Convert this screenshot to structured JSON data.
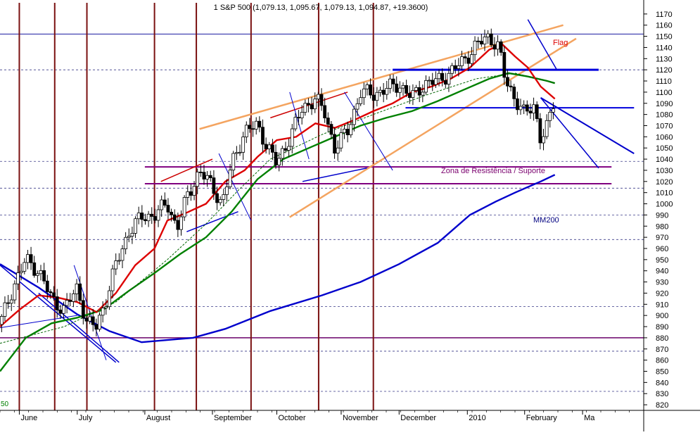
{
  "chart_data": {
    "type": "candlestick",
    "title": "1 S&P 500 (1,079.13, 1,095.67, 1,079.13, 1,094.87, +19.3600)",
    "y_axis": {
      "position": "right",
      "range": [
        815,
        1180
      ],
      "ticks": [
        820,
        830,
        840,
        850,
        860,
        870,
        880,
        890,
        900,
        910,
        920,
        930,
        940,
        950,
        960,
        970,
        980,
        990,
        1000,
        1010,
        1020,
        1030,
        1040,
        1050,
        1060,
        1070,
        1080,
        1090,
        1100,
        1110,
        1120,
        1130,
        1140,
        1150,
        1160,
        1170
      ]
    },
    "x_axis": {
      "months": [
        {
          "label": "June",
          "t": 0.03
        },
        {
          "label": "July",
          "t": 0.12
        },
        {
          "label": "August",
          "t": 0.225
        },
        {
          "label": "September",
          "t": 0.33
        },
        {
          "label": "October",
          "t": 0.43
        },
        {
          "label": "November",
          "t": 0.53
        },
        {
          "label": "December",
          "t": 0.62
        },
        {
          "label": "2010",
          "t": 0.726
        },
        {
          "label": "February",
          "t": 0.815
        },
        {
          "label": "Ma",
          "t": 0.905
        }
      ]
    },
    "grid": {
      "vertical_lines_t": [
        0.03,
        0.085,
        0.135,
        0.24,
        0.305,
        0.39,
        0.495,
        0.58
      ],
      "horizontal_dashed_levels": [
        832,
        868,
        908,
        968,
        990,
        1014,
        1038,
        1120
      ]
    },
    "series": [
      {
        "name": "MM200",
        "color": "#0000cc",
        "kind": "moving-average",
        "points": [
          [
            0.0,
            946
          ],
          [
            0.06,
            925
          ],
          [
            0.12,
            901
          ],
          [
            0.17,
            886
          ],
          [
            0.22,
            876
          ],
          [
            0.3,
            880
          ],
          [
            0.35,
            888
          ],
          [
            0.42,
            904
          ],
          [
            0.5,
            918
          ],
          [
            0.56,
            930
          ],
          [
            0.62,
            946
          ],
          [
            0.68,
            965
          ],
          [
            0.73,
            990
          ],
          [
            0.77,
            1002
          ],
          [
            0.8,
            1010
          ],
          [
            0.84,
            1020
          ],
          [
            0.862,
            1026
          ]
        ]
      },
      {
        "color": "#008000",
        "kind": "moving-average",
        "points": [
          [
            0.0,
            850
          ],
          [
            0.04,
            880
          ],
          [
            0.08,
            893
          ],
          [
            0.12,
            898
          ],
          [
            0.16,
            905
          ],
          [
            0.2,
            922
          ],
          [
            0.24,
            938
          ],
          [
            0.28,
            955
          ],
          [
            0.32,
            970
          ],
          [
            0.36,
            993
          ],
          [
            0.4,
            1022
          ],
          [
            0.44,
            1040
          ],
          [
            0.48,
            1050
          ],
          [
            0.52,
            1060
          ],
          [
            0.56,
            1070
          ],
          [
            0.6,
            1077
          ],
          [
            0.64,
            1083
          ],
          [
            0.68,
            1092
          ],
          [
            0.72,
            1102
          ],
          [
            0.76,
            1112
          ],
          [
            0.79,
            1117
          ],
          [
            0.82,
            1114
          ],
          [
            0.85,
            1110
          ],
          [
            0.862,
            1108
          ]
        ]
      },
      {
        "color": "#dd0000",
        "kind": "moving-average",
        "points": [
          [
            0.0,
            890
          ],
          [
            0.03,
            905
          ],
          [
            0.06,
            918
          ],
          [
            0.09,
            916
          ],
          [
            0.12,
            912
          ],
          [
            0.15,
            903
          ],
          [
            0.18,
            920
          ],
          [
            0.21,
            945
          ],
          [
            0.24,
            960
          ],
          [
            0.26,
            985
          ],
          [
            0.29,
            992
          ],
          [
            0.32,
            1000
          ],
          [
            0.35,
            1020
          ],
          [
            0.38,
            1030
          ],
          [
            0.4,
            1042
          ],
          [
            0.43,
            1057
          ],
          [
            0.46,
            1060
          ],
          [
            0.49,
            1072
          ],
          [
            0.52,
            1068
          ],
          [
            0.55,
            1075
          ],
          [
            0.58,
            1083
          ],
          [
            0.61,
            1090
          ],
          [
            0.64,
            1100
          ],
          [
            0.67,
            1105
          ],
          [
            0.7,
            1112
          ],
          [
            0.73,
            1122
          ],
          [
            0.76,
            1138
          ],
          [
            0.78,
            1143
          ],
          [
            0.8,
            1132
          ],
          [
            0.82,
            1122
          ],
          [
            0.84,
            1105
          ],
          [
            0.862,
            1094
          ]
        ]
      }
    ],
    "close_path": [
      [
        0.0,
        892
      ],
      [
        0.02,
        925
      ],
      [
        0.04,
        950
      ],
      [
        0.06,
        940
      ],
      [
        0.08,
        915
      ],
      [
        0.1,
        905
      ],
      [
        0.12,
        925
      ],
      [
        0.135,
        893
      ],
      [
        0.15,
        890
      ],
      [
        0.165,
        915
      ],
      [
        0.18,
        945
      ],
      [
        0.2,
        975
      ],
      [
        0.22,
        988
      ],
      [
        0.24,
        990
      ],
      [
        0.26,
        1000
      ],
      [
        0.275,
        978
      ],
      [
        0.29,
        1005
      ],
      [
        0.31,
        1030
      ],
      [
        0.33,
        1015
      ],
      [
        0.345,
        1000
      ],
      [
        0.36,
        1035
      ],
      [
        0.38,
        1065
      ],
      [
        0.4,
        1070
      ],
      [
        0.415,
        1052
      ],
      [
        0.43,
        1035
      ],
      [
        0.45,
        1060
      ],
      [
        0.47,
        1085
      ],
      [
        0.49,
        1095
      ],
      [
        0.505,
        1080
      ],
      [
        0.52,
        1050
      ],
      [
        0.54,
        1065
      ],
      [
        0.56,
        1100
      ],
      [
        0.58,
        1098
      ],
      [
        0.6,
        1103
      ],
      [
        0.62,
        1107
      ],
      [
        0.64,
        1095
      ],
      [
        0.66,
        1108
      ],
      [
        0.68,
        1110
      ],
      [
        0.7,
        1118
      ],
      [
        0.72,
        1128
      ],
      [
        0.74,
        1142
      ],
      [
        0.76,
        1150
      ],
      [
        0.775,
        1140
      ],
      [
        0.785,
        1110
      ],
      [
        0.8,
        1095
      ],
      [
        0.815,
        1080
      ],
      [
        0.83,
        1088
      ],
      [
        0.84,
        1058
      ],
      [
        0.85,
        1068
      ],
      [
        0.862,
        1095
      ]
    ],
    "annotations": {
      "zone_label": "Zona de Resistência / Suporte",
      "flag_label": "Flag",
      "ma_label": "MM200",
      "corner_label": "50"
    }
  }
}
